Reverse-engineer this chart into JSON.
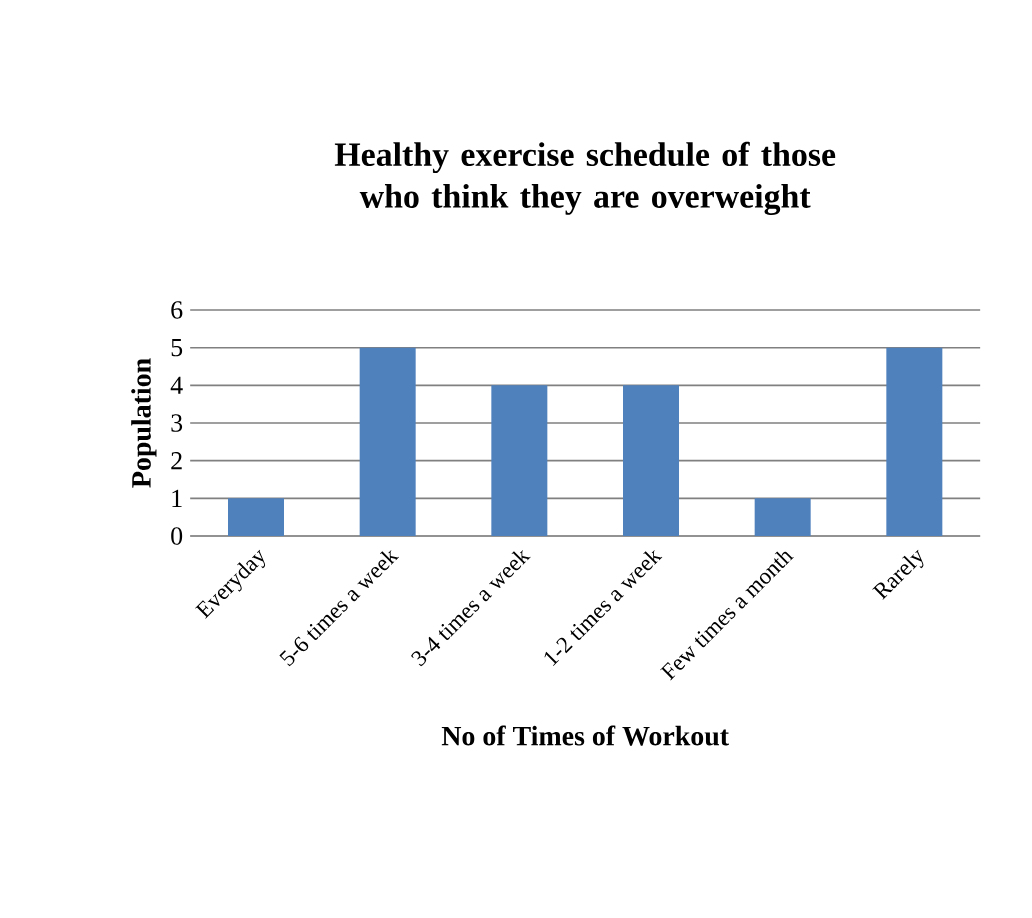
{
  "chart_data": {
    "type": "bar",
    "title": "Healthy exercise schedule of those who think they are overweight",
    "xlabel": "No of Times of Workout",
    "ylabel": "Population",
    "categories": [
      "Everyday",
      "5-6 times a week",
      "3-4 times a week",
      "1-2 times a week",
      "Few times a month",
      "Rarely"
    ],
    "values": [
      1,
      5,
      4,
      4,
      1,
      5
    ],
    "color": "#4f81bd",
    "ylim": [
      0,
      6
    ],
    "yticks": [
      0,
      1,
      2,
      3,
      4,
      5,
      6
    ],
    "grid": "y"
  }
}
